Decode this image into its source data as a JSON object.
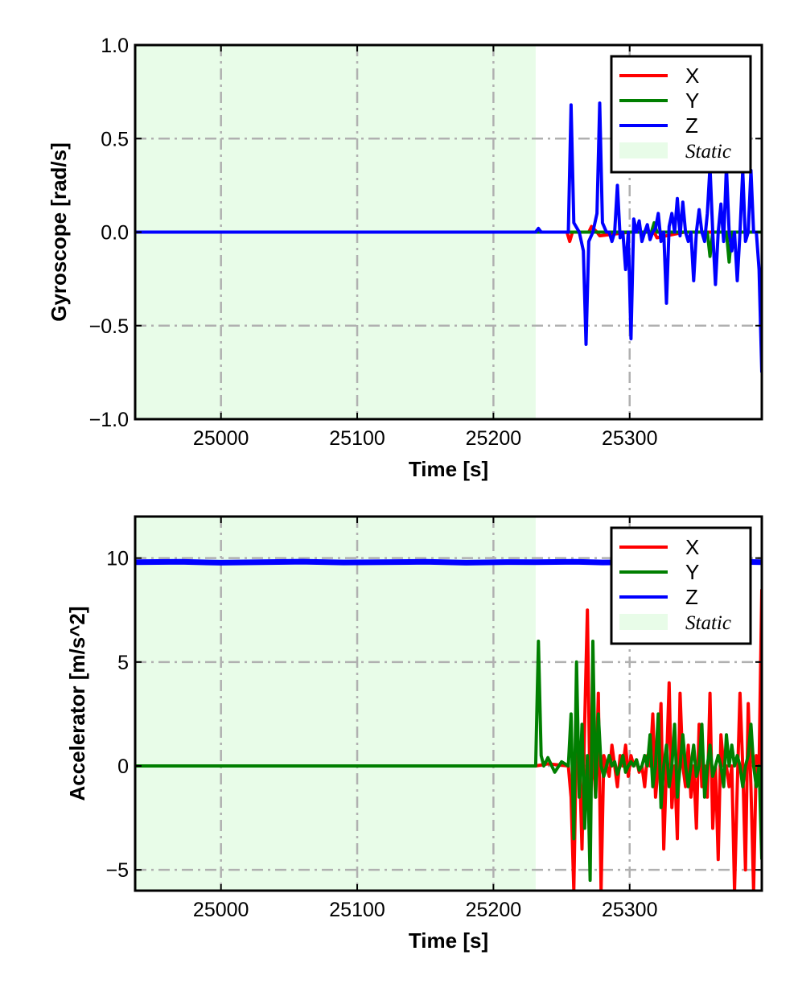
{
  "colors": {
    "X": "#ff0000",
    "Y": "#007f00",
    "Z": "#0000ff",
    "static_region": "#e8fce8",
    "grid": "#b0b0b0"
  },
  "chart_data": [
    {
      "type": "line",
      "xlabel": "Time [s]",
      "ylabel": "Gyroscope [rad/s]",
      "xlim": [
        24937,
        25397
      ],
      "ylim": [
        -1.0,
        1.0
      ],
      "xticks": [
        25000,
        25100,
        25200,
        25300
      ],
      "yticks": [
        -1.0,
        -0.5,
        0.0,
        0.5,
        1.0
      ],
      "ytick_labels": [
        "−1.0",
        "−0.5",
        "0.0",
        "0.5",
        "1.0"
      ],
      "grid": true,
      "legend_position": "top-right",
      "legend": [
        "X",
        "Y",
        "Z",
        "Static"
      ],
      "static_region": [
        24937,
        25231
      ],
      "series": [
        {
          "name": "X",
          "x": [
            24937,
            25231,
            25254,
            25256,
            25258,
            25270,
            25272,
            25276,
            25278,
            25300,
            25318,
            25320,
            25340,
            25360,
            25380,
            25397
          ],
          "y": [
            0.0,
            0.0,
            0.0,
            -0.05,
            0.0,
            0.0,
            0.03,
            0.0,
            -0.02,
            0.0,
            0.0,
            -0.03,
            0.0,
            0.0,
            0.0,
            0.0
          ]
        },
        {
          "name": "Y",
          "x": [
            24937,
            25231,
            25300,
            25316,
            25318,
            25320,
            25340,
            25357,
            25359,
            25361,
            25371,
            25373,
            25375,
            25397
          ],
          "y": [
            0.0,
            0.0,
            0.0,
            0.0,
            0.05,
            0.0,
            0.0,
            0.0,
            -0.13,
            0.0,
            0.0,
            -0.16,
            0.0,
            0.0
          ]
        },
        {
          "name": "Z",
          "x": [
            24937,
            25231,
            25233,
            25235,
            25240,
            25255,
            25257,
            25259,
            25263,
            25266,
            25268,
            25270,
            25273,
            25276,
            25278,
            25280,
            25283,
            25285,
            25287,
            25289,
            25291,
            25293,
            25295,
            25297,
            25299,
            25301,
            25303,
            25305,
            25307,
            25309,
            25311,
            25313,
            25315,
            25317,
            25319,
            25321,
            25323,
            25325,
            25327,
            25329,
            25331,
            25333,
            25335,
            25337,
            25339,
            25341,
            25343,
            25345,
            25347,
            25349,
            25351,
            25353,
            25355,
            25357,
            25359,
            25361,
            25363,
            25365,
            25367,
            25369,
            25371,
            25373,
            25375,
            25377,
            25379,
            25381,
            25383,
            25385,
            25387,
            25389,
            25391,
            25393,
            25395,
            25397
          ],
          "y": [
            0.0,
            0.0,
            0.02,
            0.0,
            0.0,
            0.0,
            0.68,
            0.05,
            0.0,
            -0.1,
            -0.6,
            -0.05,
            0.0,
            0.1,
            0.69,
            0.05,
            0.0,
            0.0,
            -0.05,
            0.0,
            0.25,
            -0.03,
            0.0,
            -0.2,
            0.0,
            -0.57,
            0.07,
            0.0,
            0.06,
            -0.05,
            0.0,
            0.04,
            -0.04,
            0.0,
            0.02,
            0.1,
            -0.05,
            0.0,
            -0.38,
            0.03,
            0.1,
            0.0,
            0.18,
            -0.02,
            0.16,
            0.0,
            -0.05,
            0.0,
            -0.26,
            0.0,
            0.12,
            0.0,
            -0.05,
            0.1,
            0.35,
            0.0,
            -0.28,
            0.0,
            0.15,
            -0.05,
            0.35,
            0.0,
            -0.1,
            0.0,
            -0.26,
            0.0,
            0.33,
            -0.05,
            0.0,
            0.33,
            0.0,
            0.0,
            -0.2,
            -0.75
          ]
        }
      ]
    },
    {
      "type": "line",
      "xlabel": "Time [s]",
      "ylabel": "Accelerator [m/s^2]",
      "xlim": [
        24937,
        25397
      ],
      "ylim": [
        -6,
        12
      ],
      "xticks": [
        25000,
        25100,
        25200,
        25300
      ],
      "yticks": [
        -5,
        0,
        5,
        10
      ],
      "ytick_labels": [
        "−5",
        "0",
        "5",
        "10"
      ],
      "grid": true,
      "legend_position": "top-right",
      "legend": [
        "X",
        "Y",
        "Z",
        "Static"
      ],
      "static_region": [
        24937,
        25231
      ],
      "series": [
        {
          "name": "X",
          "x": [
            24937,
            25231,
            25240,
            25255,
            25257,
            25259,
            25261,
            25263,
            25265,
            25267,
            25269,
            25271,
            25273,
            25275,
            25277,
            25279,
            25281,
            25283,
            25285,
            25287,
            25289,
            25291,
            25293,
            25295,
            25297,
            25299,
            25301,
            25303,
            25305,
            25307,
            25309,
            25311,
            25313,
            25315,
            25317,
            25319,
            25321,
            25323,
            25325,
            25327,
            25329,
            25331,
            25333,
            25335,
            25337,
            25339,
            25341,
            25343,
            25345,
            25347,
            25349,
            25351,
            25353,
            25355,
            25357,
            25359,
            25361,
            25363,
            25365,
            25367,
            25369,
            25371,
            25373,
            25375,
            25377,
            25379,
            25381,
            25383,
            25385,
            25387,
            25389,
            25391,
            25393,
            25395,
            25397
          ],
          "y": [
            0.0,
            0.0,
            0.1,
            0.0,
            -1.5,
            -6.0,
            1.5,
            0.5,
            -4.0,
            2.0,
            7.5,
            -2.0,
            1.0,
            -1.5,
            3.5,
            -6.0,
            0.5,
            0.0,
            -0.5,
            1.0,
            0.0,
            -1.0,
            0.5,
            0.0,
            1.0,
            -0.5,
            0.5,
            0.0,
            0.3,
            -0.3,
            0.0,
            -1.0,
            0.5,
            0.0,
            2.5,
            -1.5,
            0.0,
            3.0,
            -4.0,
            0.0,
            4.0,
            -2.0,
            0.0,
            -3.5,
            3.5,
            0.0,
            -1.0,
            1.0,
            -1.5,
            0.0,
            -3.0,
            2.0,
            -1.0,
            0.0,
            -1.5,
            3.5,
            -3.0,
            0.0,
            -4.5,
            1.5,
            0.0,
            0.0,
            -1.0,
            0.0,
            -6.0,
            -1.0,
            3.5,
            0.0,
            -5.0,
            3.0,
            -1.0,
            -6.0,
            0.5,
            0.0,
            8.5
          ]
        },
        {
          "name": "Y",
          "x": [
            24937,
            25231,
            25233,
            25235,
            25237,
            25240,
            25245,
            25250,
            25255,
            25257,
            25259,
            25261,
            25263,
            25265,
            25267,
            25269,
            25271,
            25273,
            25275,
            25277,
            25279,
            25281,
            25283,
            25285,
            25287,
            25289,
            25291,
            25293,
            25295,
            25297,
            25299,
            25301,
            25303,
            25305,
            25307,
            25309,
            25311,
            25313,
            25315,
            25317,
            25319,
            25321,
            25323,
            25325,
            25327,
            25329,
            25331,
            25333,
            25335,
            25337,
            25339,
            25341,
            25343,
            25345,
            25347,
            25349,
            25351,
            25353,
            25355,
            25357,
            25359,
            25361,
            25363,
            25365,
            25367,
            25369,
            25371,
            25373,
            25375,
            25377,
            25379,
            25381,
            25383,
            25385,
            25387,
            25389,
            25391,
            25393,
            25395,
            25397
          ],
          "y": [
            0.0,
            0.0,
            6.0,
            0.5,
            0.0,
            0.4,
            -0.3,
            0.2,
            0.0,
            2.5,
            -3.5,
            5.0,
            -1.5,
            2.0,
            -3.0,
            0.5,
            -5.5,
            6.0,
            -1.5,
            2.5,
            0.0,
            -0.5,
            0.0,
            0.5,
            0.0,
            0.2,
            -0.4,
            0.0,
            0.5,
            -0.3,
            0.0,
            0.2,
            0.0,
            0.3,
            -0.2,
            0.0,
            0.5,
            0.0,
            1.5,
            -1.0,
            0.0,
            2.5,
            -2.0,
            0.0,
            1.0,
            -1.0,
            0.0,
            2.0,
            -1.5,
            0.0,
            1.5,
            0.0,
            -1.0,
            0.0,
            1.0,
            -0.5,
            0.0,
            2.0,
            -1.5,
            0.0,
            1.0,
            -0.5,
            0.0,
            0.5,
            0.0,
            -1.0,
            1.5,
            0.0,
            1.0,
            0.0,
            0.5,
            0.0,
            -1.0,
            0.0,
            0.5,
            2.0,
            0.0,
            -1.0,
            0.0,
            -4.5
          ]
        },
        {
          "name": "Z",
          "x": [
            24937,
            24970,
            25000,
            25030,
            25060,
            25090,
            25120,
            25150,
            25180,
            25210,
            25231,
            25260,
            25280,
            25300,
            25320,
            25340,
            25360,
            25380,
            25397
          ],
          "y": [
            9.8,
            9.82,
            9.78,
            9.8,
            9.83,
            9.79,
            9.8,
            9.82,
            9.78,
            9.81,
            9.8,
            9.82,
            9.79,
            9.8,
            9.81,
            9.8,
            9.79,
            9.82,
            9.8
          ]
        }
      ]
    }
  ]
}
